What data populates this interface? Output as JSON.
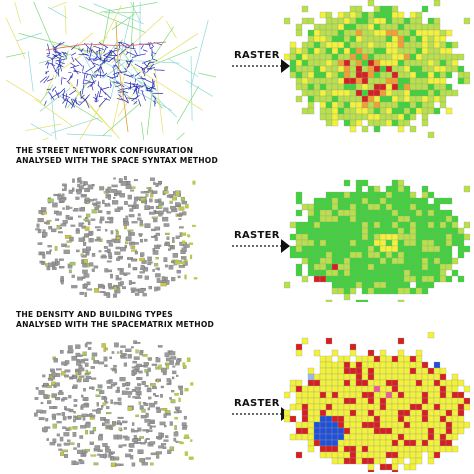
{
  "rows": [
    {
      "id": "street-network",
      "arrow_label": "RASTER",
      "caption_lines": [
        "THE STREET NETWORK CONFIGURATION",
        "ANALYSED WITH THE SPACE SYNTAX METHOD"
      ]
    },
    {
      "id": "density",
      "arrow_label": "RASTER",
      "caption_lines": [
        "THE DENSITY AND BUILDING TYPES",
        "ANALYSED WITH THE SPACEMATRIX METHOD"
      ]
    },
    {
      "id": "combined",
      "arrow_label": "RASTER",
      "caption_lines": []
    }
  ],
  "colors": {
    "street_blue": "#2b2bb8",
    "street_green": "#7fd97f",
    "street_cyan": "#8fd8d8",
    "street_yellow": "#e6e060",
    "building_gray": "#9a9a9a",
    "raster_green": "#3fd23a",
    "raster_yellowgreen": "#b8e04a",
    "raster_yellow": "#f2f23a",
    "raster_red": "#d42020",
    "raster_blue": "#2050d8",
    "raster_lightblue": "#9ab8ee",
    "raster_pink": "#ee5a9a",
    "raster_orange": "#f0a030",
    "grid_line": "#9a9a9a"
  }
}
